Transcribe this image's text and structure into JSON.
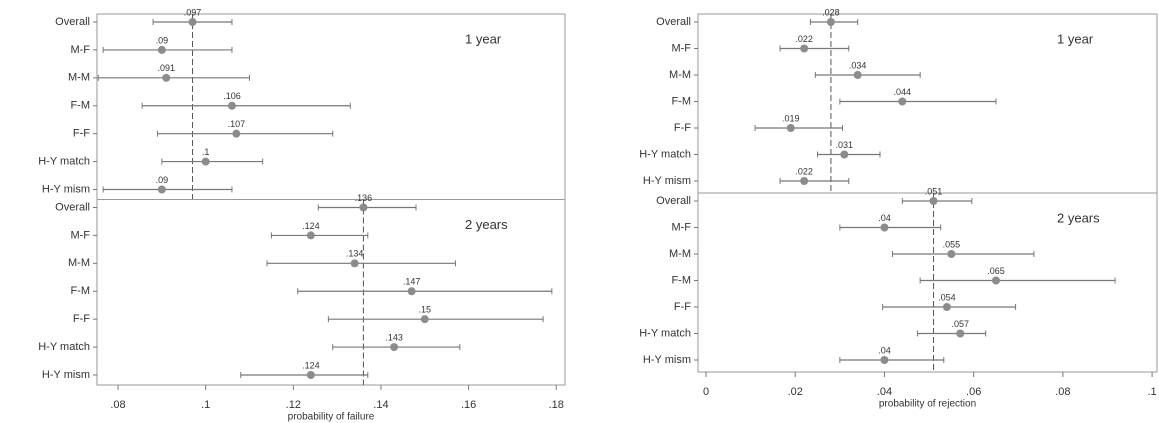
{
  "chart_data": [
    {
      "type": "dotplot",
      "xlabel": "probability of failure",
      "xlim": [
        0.0752,
        0.182
      ],
      "xticks": [
        {
          "value": 0.08,
          "label": ".08"
        },
        {
          "value": 0.1,
          "label": ".1"
        },
        {
          "value": 0.12,
          "label": ".12"
        },
        {
          "value": 0.14,
          "label": ".14"
        },
        {
          "value": 0.16,
          "label": ".16"
        },
        {
          "value": 0.18,
          "label": ".18"
        }
      ],
      "categories": [
        "Overall",
        "M-F",
        "M-M",
        "F-M",
        "F-F",
        "H-Y match",
        "H-Y mism"
      ],
      "color": "#8c8c8c",
      "panels": [
        {
          "label": "1 year",
          "reference_line": 0.097,
          "values": [
            0.097,
            0.09,
            0.091,
            0.106,
            0.107,
            0.1,
            0.09
          ],
          "value_labels": [
            ".097",
            ".09",
            ".091",
            ".106",
            ".107",
            ".1",
            ".09"
          ],
          "lower": [
            0.088,
            0.0766,
            0.0755,
            0.0855,
            0.089,
            0.09,
            0.0766
          ],
          "upper": [
            0.106,
            0.106,
            0.11,
            0.133,
            0.129,
            0.113,
            0.106
          ]
        },
        {
          "label": "2 years",
          "reference_line": 0.136,
          "values": [
            0.136,
            0.124,
            0.134,
            0.147,
            0.15,
            0.143,
            0.124
          ],
          "value_labels": [
            ".136",
            ".124",
            ".134",
            ".147",
            ".15",
            ".143",
            ".124"
          ],
          "lower": [
            0.1257,
            0.115,
            0.114,
            0.121,
            0.128,
            0.129,
            0.108
          ],
          "upper": [
            0.148,
            0.137,
            0.157,
            0.179,
            0.177,
            0.158,
            0.137
          ]
        }
      ]
    },
    {
      "type": "dotplot",
      "xlabel": "probability of rejection",
      "xlim": [
        -0.0018,
        0.1011
      ],
      "xticks": [
        0,
        {
          "value": 0.02,
          "label": ".02"
        },
        {
          "value": 0.04,
          "label": ".04"
        },
        {
          "value": 0.06,
          "label": ".06"
        },
        {
          "value": 0.08,
          "label": ".08"
        },
        {
          "value": 0.1,
          "label": ".1"
        }
      ],
      "categories": [
        "Overall",
        "M-F",
        "M-M",
        "F-M",
        "F-F",
        "H-Y match",
        "H-Y mism"
      ],
      "color": "#8c8c8c",
      "panels": [
        {
          "label": "1 year",
          "reference_line": 0.028,
          "values": [
            0.028,
            0.022,
            0.034,
            0.044,
            0.019,
            0.031,
            0.022
          ],
          "value_labels": [
            ".028",
            ".022",
            ".034",
            ".044",
            ".019",
            ".031",
            ".022"
          ],
          "lower": [
            0.0234,
            0.0166,
            0.0245,
            0.03,
            0.011,
            0.025,
            0.0166
          ],
          "upper": [
            0.034,
            0.032,
            0.048,
            0.065,
            0.0306,
            0.039,
            0.032
          ]
        },
        {
          "label": "2 years",
          "reference_line": 0.051,
          "values": [
            0.051,
            0.04,
            0.055,
            0.065,
            0.054,
            0.057,
            0.04
          ],
          "value_labels": [
            ".051",
            ".04",
            ".055",
            ".065",
            ".054",
            ".057",
            ".04"
          ],
          "lower": [
            0.044,
            0.03,
            0.0418,
            0.048,
            0.0396,
            0.0474,
            0.03
          ],
          "upper": [
            0.0596,
            0.0526,
            0.0735,
            0.0917,
            0.0694,
            0.0627,
            0.0533
          ]
        }
      ]
    }
  ]
}
